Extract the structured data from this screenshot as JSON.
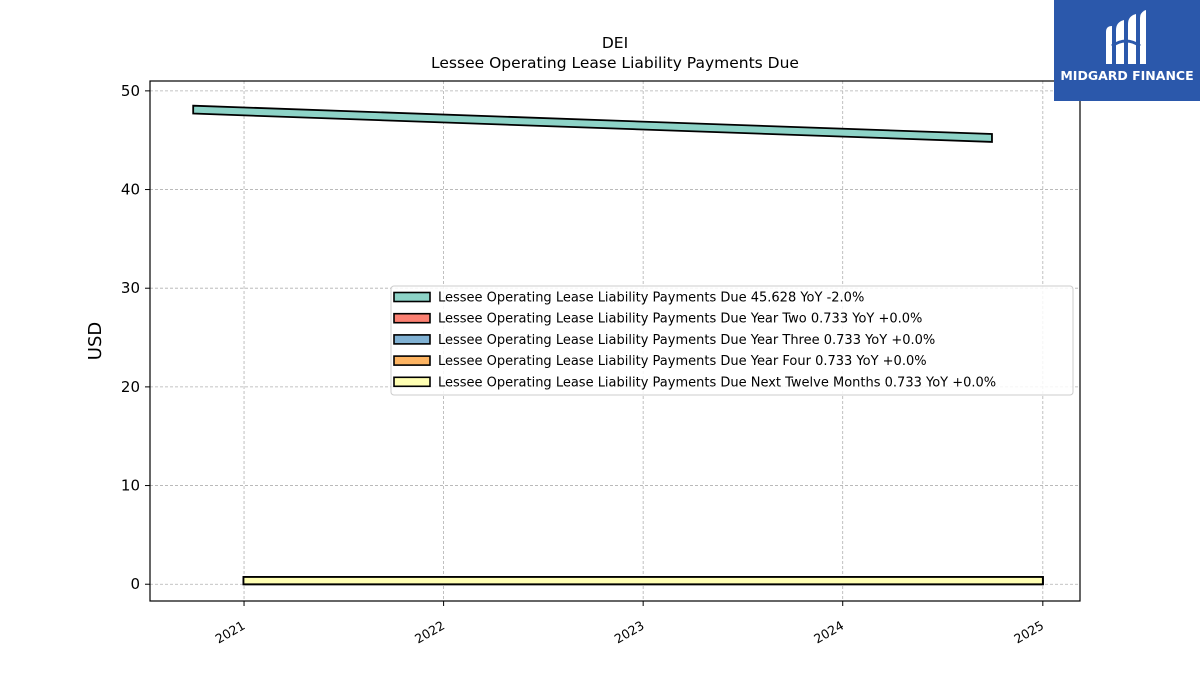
{
  "brand": {
    "name": "MIDGARD FINANCE",
    "logo_icon": "midgard-m-logo",
    "background": "#2b58ab"
  },
  "chart_data": {
    "type": "area",
    "title": "DEI",
    "subtitle": "Lessee Operating Lease Liability Payments Due",
    "xlabel": "",
    "ylabel": "USD",
    "x_tick_labels": [
      "2021",
      "2022",
      "2023",
      "2024",
      "2025"
    ],
    "y_tick_labels": [
      "0",
      "10",
      "20",
      "30",
      "40",
      "50"
    ],
    "ylim": [
      -1.7,
      51
    ],
    "xlim": [
      "2020-07-13",
      "2025-03-10"
    ],
    "grid": true,
    "legend_position": "center-right",
    "series": [
      {
        "name": "Lessee Operating Lease Liability Payments Due",
        "legend_label": "Lessee Operating Lease Liability Payments Due  45.628 YoY -2.0%",
        "color": "#8dd3c7",
        "x": [
          "2020-09-30",
          "2024-09-30"
        ],
        "y": [
          48.5,
          45.628
        ],
        "band_thickness": 0.8
      },
      {
        "name": "Lessee Operating Lease Liability Payments Due Year Two",
        "legend_label": "Lessee Operating Lease Liability Payments Due Year Two  0.733 YoY +0.0%",
        "color": "#fb8072",
        "x": [
          "2020-12-31",
          "2025-01-01"
        ],
        "y": [
          0.733,
          0.733
        ],
        "band_thickness": 0.733
      },
      {
        "name": "Lessee Operating Lease Liability Payments Due Year Three",
        "legend_label": "Lessee Operating Lease Liability Payments Due Year Three  0.733 YoY +0.0%",
        "color": "#80b1d3",
        "x": [
          "2020-12-31",
          "2025-01-01"
        ],
        "y": [
          0.733,
          0.733
        ],
        "band_thickness": 0.733
      },
      {
        "name": "Lessee Operating Lease Liability Payments Due Year Four",
        "legend_label": "Lessee Operating Lease Liability Payments Due Year Four  0.733 YoY +0.0%",
        "color": "#fdb462",
        "x": [
          "2020-12-31",
          "2025-01-01"
        ],
        "y": [
          0.733,
          0.733
        ],
        "band_thickness": 0.733
      },
      {
        "name": "Lessee Operating Lease Liability Payments Due Next Twelve Months",
        "legend_label": "Lessee Operating Lease Liability Payments Due Next Twelve Months  0.733 YoY +0.0%",
        "color": "#ffffb3",
        "x": [
          "2020-12-31",
          "2025-01-01"
        ],
        "y": [
          0.733,
          0.733
        ],
        "band_thickness": 0.733
      }
    ]
  }
}
